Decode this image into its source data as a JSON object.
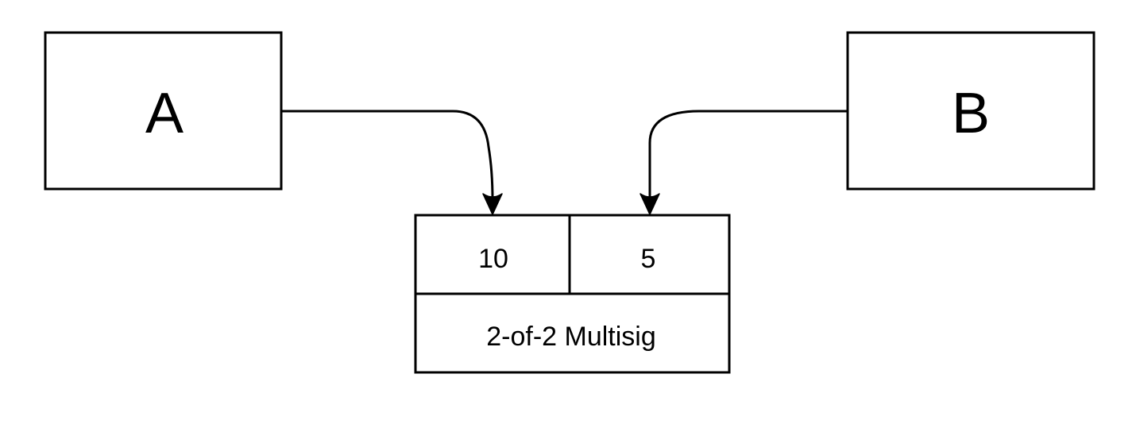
{
  "nodes": {
    "a": {
      "label": "A"
    },
    "b": {
      "label": "B"
    }
  },
  "output": {
    "amount_a": "10",
    "amount_b": "5",
    "script": "2-of-2 Multisig"
  },
  "colors": {
    "stroke": "#000000",
    "fill": "#ffffff",
    "text": "#000000"
  }
}
